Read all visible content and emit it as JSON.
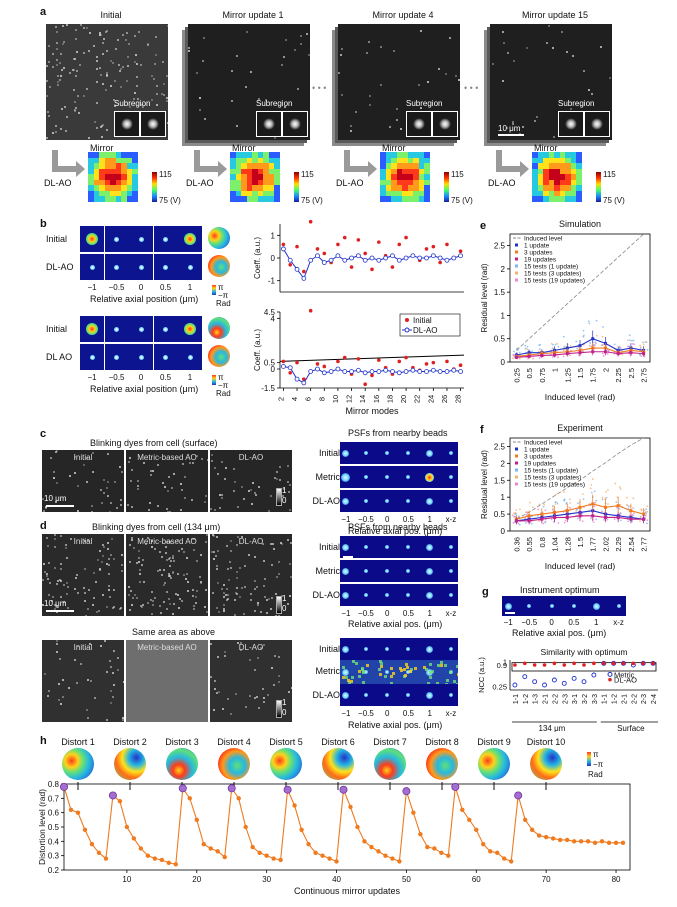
{
  "panel_letters": {
    "a": "a",
    "b": "b",
    "c": "c",
    "d": "d",
    "e": "e",
    "f": "f",
    "g": "g",
    "h": "h"
  },
  "panel_a": {
    "columns": [
      "Initial",
      "Mirror update 1",
      "Mirror update 4",
      "Mirror update 15"
    ],
    "subregion": "Subregion",
    "mirror": "Mirror",
    "dlao": "DL-AO",
    "scalebar": "10 μm",
    "cbar_top": "115",
    "cbar_bottom": "75 (V)",
    "ellipsis": "• • •"
  },
  "panel_b": {
    "row_labels": [
      "Initial",
      "DL-AO",
      "Initial",
      "DL AO"
    ],
    "axis_ticks": [
      "−1",
      "−0.5",
      "0",
      "0.5",
      "1"
    ],
    "axis_title": "Relative axial position (μm)",
    "phase_pi": "π",
    "phase_mpi": "−π",
    "phase_unit": "Rad",
    "coeff_label": "Coeff. (a.u.)",
    "legend_initial": "Initial",
    "legend_dlao": "DL-AO",
    "mirror_modes": "Mirror modes"
  },
  "panel_c": {
    "title": "Blinking dyes from cell (surface)",
    "cols": [
      "Initial",
      "Metric-based AO",
      "DL-AO"
    ],
    "scalebar": "10 μm",
    "cb_top": "1",
    "cb_bot": "0",
    "psf_title": "PSFs from nearby beads",
    "psf_rows": [
      "Initial",
      "Metric",
      "DL-AO"
    ],
    "psf_ticks": [
      "−1",
      "−0.5",
      "0",
      "0.5",
      "1",
      "x-z"
    ],
    "psf_axis": "Relative axial pos. (μm)"
  },
  "panel_d": {
    "title": "Blinking dyes from cell (134 μm)",
    "cols": [
      "Initial",
      "Metric-based AO",
      "DL-AO"
    ],
    "scalebar": "10 μm",
    "same_area": "Same area as above",
    "cb_top": "1",
    "cb_bot": "0",
    "psf_title": "PSFs from nearby beads",
    "psf_rows": [
      "Initial",
      "Metric",
      "DL-AO"
    ],
    "psf_ticks": [
      "−1",
      "−0.5",
      "0",
      "0.5",
      "1",
      "x-z"
    ],
    "psf_axis": "Relative axial pos. (μm)"
  },
  "panel_e": {
    "title": "Simulation"
  },
  "panel_f": {
    "title": "Experiment"
  },
  "panel_g": {
    "title1": "Instrument optimum",
    "ticks": [
      "−1",
      "−0.5",
      "0",
      "0.5",
      "1",
      "x-z"
    ],
    "axis": "Relative axial pos. (μm)",
    "title2": "Similarity with optimum",
    "ylabel": "NCC (a.u.)",
    "legend_metric": "Metric",
    "legend_dlao": "DL-AO",
    "group1": "134 μm",
    "group2": "Surface"
  },
  "panel_h": {
    "distort_labels": [
      "Distort 1",
      "Distort 2",
      "Distort 3",
      "Distort 4",
      "Distort 5",
      "Distort 6",
      "Distort 7",
      "Distort 8",
      "Distort 9",
      "Distort 10"
    ],
    "phase_pi": "π",
    "phase_mpi": "−π",
    "phase_unit": "Rad"
  },
  "colors": {
    "orange": "#f07a1e",
    "blue": "#2233cc",
    "red": "#e02020",
    "purple": "#7a4fb3"
  },
  "chart_data": [
    {
      "type": "scatter",
      "id": "b-top",
      "ylabel": "Coeff. (a.u.)",
      "ylim": [
        -1.5,
        1.5
      ],
      "yticks": [
        -1,
        0,
        1
      ],
      "series": [
        {
          "name": "Initial",
          "x": [
            2,
            3,
            4,
            5,
            6,
            7,
            8,
            9,
            10,
            11,
            12,
            13,
            14,
            15,
            16,
            17,
            18,
            19,
            20,
            21,
            22,
            23,
            24,
            25,
            26,
            27,
            28
          ],
          "values": [
            0.6,
            -0.3,
            0.5,
            -0.6,
            1.6,
            0.4,
            0.2,
            -0.2,
            0.6,
            0.9,
            -0.4,
            0.8,
            0.2,
            -0.5,
            0.7,
            0.1,
            -0.4,
            0.6,
            0.9,
            0.1,
            -0.1,
            0.4,
            0.5,
            -0.2,
            0.6,
            0.0,
            0.3
          ]
        },
        {
          "name": "DL-AO",
          "x": [
            2,
            3,
            4,
            5,
            6,
            7,
            8,
            9,
            10,
            11,
            12,
            13,
            14,
            15,
            16,
            17,
            18,
            19,
            20,
            21,
            22,
            23,
            24,
            25,
            26,
            27,
            28
          ],
          "values": [
            0.4,
            -0.1,
            -0.5,
            -0.9,
            -0.1,
            0.1,
            -0.2,
            -0.1,
            0.1,
            -0.1,
            0.0,
            0.1,
            -0.1,
            0.0,
            -0.1,
            0.0,
            0.1,
            -0.1,
            0.0,
            0.1,
            0.0,
            0.0,
            0.1,
            0.0,
            -0.1,
            0.0,
            0.1
          ]
        }
      ]
    },
    {
      "type": "scatter",
      "id": "b-bottom",
      "xlabel": "Mirror modes",
      "ylabel": "Coeff. (a.u.)",
      "ylim": [
        -1.5,
        4.5
      ],
      "yticks": [
        -1.5,
        0,
        0.5,
        4,
        4.5
      ],
      "xticks": [
        2,
        4,
        6,
        8,
        10,
        12,
        14,
        16,
        18,
        20,
        22,
        24,
        26,
        28
      ],
      "legend": [
        "Initial",
        "DL-AO"
      ],
      "series": [
        {
          "name": "Initial",
          "x": [
            2,
            3,
            4,
            5,
            6,
            7,
            8,
            9,
            10,
            11,
            12,
            13,
            14,
            15,
            16,
            17,
            18,
            19,
            20,
            21,
            22,
            23,
            24,
            25,
            26,
            27,
            28
          ],
          "values": [
            0.6,
            -0.3,
            0.5,
            -0.8,
            4.6,
            0.4,
            0.2,
            -0.2,
            0.6,
            0.9,
            -0.4,
            0.8,
            -1.2,
            -0.5,
            0.7,
            0.1,
            -0.4,
            0.6,
            0.9,
            0.1,
            -0.1,
            0.4,
            0.5,
            -0.2,
            0.6,
            0.0,
            0.3
          ]
        },
        {
          "name": "DL-AO",
          "x": [
            2,
            3,
            4,
            5,
            6,
            7,
            8,
            9,
            10,
            11,
            12,
            13,
            14,
            15,
            16,
            17,
            18,
            19,
            20,
            21,
            22,
            23,
            24,
            25,
            26,
            27,
            28
          ],
          "values": [
            0.2,
            0.1,
            -0.8,
            -1.1,
            -0.2,
            0.0,
            -0.3,
            -0.2,
            0.0,
            -0.2,
            -0.2,
            -0.1,
            -0.3,
            -0.2,
            -0.2,
            -0.1,
            -0.2,
            -0.3,
            -0.2,
            -0.1,
            -0.2,
            -0.2,
            -0.1,
            -0.2,
            -0.2,
            -0.1,
            -0.2
          ]
        }
      ]
    },
    {
      "type": "line",
      "id": "e",
      "title": "Simulation",
      "xlabel": "Induced level (rad)",
      "ylabel": "Residual level (rad)",
      "ylim": [
        0,
        2.75
      ],
      "yticks": [
        0,
        0.5,
        1,
        1.5,
        2,
        2.5
      ],
      "categories": [
        "0.25",
        "0.5",
        "0.75",
        "1",
        "1.25",
        "1.5",
        "1.75",
        "2",
        "2.25",
        "2.5",
        "2.75"
      ],
      "legend": [
        "Induced level",
        "1 update",
        "3 updates",
        "19 updates",
        "15 tests (1 update)",
        "15 tests (3 updates)",
        "15 tests (19 updates)"
      ],
      "series": [
        {
          "name": "Induced level",
          "values": [
            0.25,
            0.5,
            0.75,
            1,
            1.25,
            1.5,
            1.75,
            2,
            2.25,
            2.5,
            2.75
          ]
        },
        {
          "name": "1 update",
          "values": [
            0.15,
            0.2,
            0.2,
            0.25,
            0.3,
            0.35,
            0.5,
            0.4,
            0.25,
            0.3,
            0.25
          ]
        },
        {
          "name": "3 updates",
          "values": [
            0.12,
            0.15,
            0.18,
            0.2,
            0.22,
            0.25,
            0.3,
            0.3,
            0.2,
            0.25,
            0.22
          ]
        },
        {
          "name": "19 updates",
          "values": [
            0.1,
            0.12,
            0.14,
            0.15,
            0.18,
            0.2,
            0.22,
            0.22,
            0.18,
            0.2,
            0.18
          ]
        }
      ]
    },
    {
      "type": "line",
      "id": "f",
      "title": "Experiment",
      "xlabel": "Induced level (rad)",
      "ylabel": "Residual level (rad)",
      "ylim": [
        0,
        2.75
      ],
      "yticks": [
        0,
        0.5,
        1,
        1.5,
        2,
        2.5
      ],
      "categories": [
        "0.36",
        "0.55",
        "0.8",
        "1.04",
        "1.28",
        "1.5",
        "1.77",
        "2.02",
        "2.29",
        "2.54",
        "2.77"
      ],
      "legend": [
        "Induced level",
        "1 update",
        "3 updates",
        "19 updates",
        "15 tests (1 update)",
        "15 tests (3 updates)",
        "15 tests (19 updates)"
      ],
      "series": [
        {
          "name": "Induced level",
          "values": [
            0.36,
            0.55,
            0.8,
            1.04,
            1.28,
            1.5,
            1.77,
            2.02,
            2.29,
            2.54,
            2.77
          ]
        },
        {
          "name": "1 update",
          "values": [
            0.3,
            0.35,
            0.4,
            0.45,
            0.5,
            0.55,
            0.6,
            0.5,
            0.45,
            0.4,
            0.35
          ]
        },
        {
          "name": "3 updates",
          "values": [
            0.35,
            0.45,
            0.5,
            0.55,
            0.6,
            0.7,
            0.8,
            0.7,
            0.75,
            0.6,
            0.5
          ]
        },
        {
          "name": "19 updates",
          "values": [
            0.3,
            0.3,
            0.35,
            0.4,
            0.4,
            0.45,
            0.45,
            0.4,
            0.4,
            0.35,
            0.35
          ]
        }
      ]
    },
    {
      "type": "scatter",
      "id": "g",
      "title": "Similarity with optimum",
      "ylabel": "NCC (a.u.)",
      "yticks": [
        0.25,
        0.9,
        1
      ],
      "categories": [
        "1-1",
        "1-2",
        "1-3",
        "2-1",
        "2-2",
        "2-3",
        "3-1",
        "3-2",
        "3-3",
        "1-1",
        "1-2",
        "2-1",
        "2-2",
        "2-3",
        "2-4"
      ],
      "series": [
        {
          "name": "Metric",
          "values": [
            0.3,
            0.55,
            0.4,
            0.3,
            0.45,
            0.35,
            0.5,
            0.4,
            0.6,
            0.95,
            0.95,
            0.95,
            0.9,
            0.95,
            0.95
          ]
        },
        {
          "name": "DL-AO",
          "values": [
            0.9,
            0.95,
            0.9,
            0.9,
            0.95,
            0.9,
            0.95,
            0.9,
            0.95,
            0.95,
            0.95,
            0.95,
            0.95,
            0.95,
            0.95
          ]
        }
      ]
    },
    {
      "type": "line",
      "id": "h",
      "xlabel": "Continuous mirror updates",
      "ylabel": "Distortion level (rad)",
      "ylim": [
        0.2,
        0.8
      ],
      "yticks": [
        0.2,
        0.3,
        0.4,
        0.5,
        0.6,
        0.7,
        0.8
      ],
      "xticks": [
        10,
        20,
        30,
        40,
        50,
        60,
        70,
        80
      ],
      "xlim": [
        1,
        82
      ],
      "series": [
        {
          "name": "",
          "x": [
            1,
            2,
            3,
            4,
            5,
            6,
            7,
            8,
            9,
            10,
            11,
            12,
            13,
            14,
            15,
            16,
            17,
            18,
            19,
            20,
            21,
            22,
            23,
            24,
            25,
            26,
            27,
            28,
            29,
            30,
            31,
            32,
            33,
            34,
            35,
            36,
            37,
            38,
            39,
            40,
            41,
            42,
            43,
            44,
            45,
            46,
            47,
            48,
            49,
            50,
            51,
            52,
            53,
            54,
            55,
            56,
            57,
            58,
            59,
            60,
            61,
            62,
            63,
            64,
            65,
            66,
            67,
            68,
            69,
            70,
            71,
            72,
            73,
            74,
            75,
            76,
            77,
            78,
            79,
            80,
            81
          ],
          "values": [
            0.78,
            0.62,
            0.6,
            0.48,
            0.38,
            0.32,
            0.28,
            0.72,
            0.68,
            0.5,
            0.42,
            0.35,
            0.3,
            0.28,
            0.27,
            0.25,
            0.24,
            0.77,
            0.7,
            0.55,
            0.38,
            0.35,
            0.33,
            0.29,
            0.77,
            0.7,
            0.5,
            0.36,
            0.32,
            0.3,
            0.28,
            0.27,
            0.76,
            0.65,
            0.48,
            0.38,
            0.32,
            0.3,
            0.28,
            0.26,
            0.76,
            0.64,
            0.5,
            0.4,
            0.36,
            0.33,
            0.3,
            0.28,
            0.26,
            0.75,
            0.6,
            0.45,
            0.36,
            0.35,
            0.32,
            0.3,
            0.78,
            0.62,
            0.55,
            0.48,
            0.38,
            0.33,
            0.32,
            0.28,
            0.26,
            0.72,
            0.55,
            0.48,
            0.44,
            0.43,
            0.42,
            0.41,
            0.41,
            0.4,
            0.4,
            0.4,
            0.39,
            0.4,
            0.39,
            0.39,
            0.39
          ]
        },
        {
          "name": "",
          "x": [
            1,
            8,
            18,
            25,
            33,
            41,
            50,
            57,
            66
          ],
          "values": [
            0.78,
            0.72,
            0.77,
            0.77,
            0.76,
            0.76,
            0.75,
            0.78,
            0.72
          ]
        }
      ]
    }
  ]
}
